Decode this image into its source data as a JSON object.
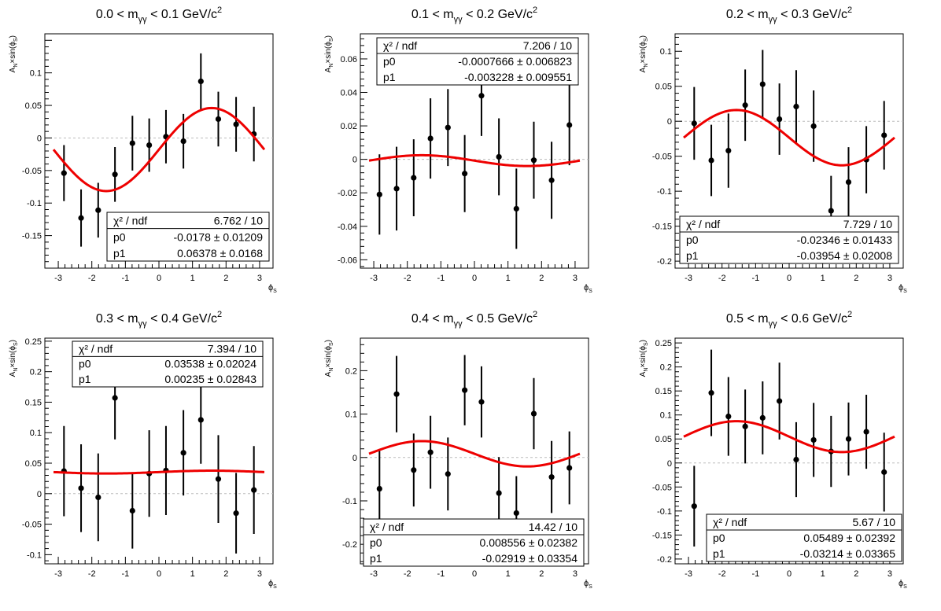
{
  "chart_data": [
    {
      "type": "scatter",
      "title": "0.0 < m_γγ < 0.1 GeV/c²",
      "title_parts": {
        "pre": "0.0 < m",
        "sub": "γγ",
        "mid": " < 0.1 GeV/c",
        "sup": "2"
      },
      "ylabel": {
        "a": "A",
        "a_sub": "N",
        "b": "×sin(ϕ",
        "b_sub": "S",
        "c": ")"
      },
      "xlabel": {
        "main": "ϕ",
        "sub": "S"
      },
      "xlim": [
        -3.4,
        3.4
      ],
      "ylim": [
        -0.2,
        0.16
      ],
      "xticks": [
        -3,
        -2,
        -1,
        0,
        1,
        2,
        3
      ],
      "yticks": [
        -0.15,
        -0.1,
        -0.05,
        0,
        0.05,
        0.1
      ],
      "ytick_labels": [
        "-0.15",
        "-0.1",
        "-0.05",
        "0",
        "0.05",
        "0.1"
      ],
      "x": [
        -2.83,
        -2.32,
        -1.81,
        -1.31,
        -0.79,
        -0.29,
        0.21,
        0.73,
        1.25,
        1.77,
        2.3,
        2.83
      ],
      "y": [
        -0.054,
        -0.123,
        -0.111,
        -0.056,
        -0.008,
        -0.011,
        0.002,
        -0.005,
        0.087,
        0.029,
        0.021,
        0.006
      ],
      "yerr": [
        0.043,
        0.044,
        0.042,
        0.042,
        0.042,
        0.041,
        0.041,
        0.042,
        0.043,
        0.042,
        0.042,
        0.042
      ],
      "fit": {
        "p0": -0.0178,
        "p1": 0.06378,
        "function": "p0 + p1*sin(phi_S)"
      },
      "stats": {
        "pos": "bottom-right",
        "chi2_label": "χ² / ndf",
        "chi2_value": "6.762 / 10",
        "p0_label": "p0",
        "p0_value": "-0.0178 ± 0.01209",
        "p1_label": "p1",
        "p1_value": "0.06378 ± 0.0168"
      }
    },
    {
      "type": "scatter",
      "title": "0.1 < m_γγ < 0.2 GeV/c²",
      "title_parts": {
        "pre": "0.1 < m",
        "sub": "γγ",
        "mid": " < 0.2 GeV/c",
        "sup": "2"
      },
      "ylabel": {
        "a": "A",
        "a_sub": "N",
        "b": "×sin(ϕ",
        "b_sub": "S",
        "c": ")"
      },
      "xlabel": {
        "main": "ϕ",
        "sub": "S"
      },
      "xlim": [
        -3.4,
        3.4
      ],
      "ylim": [
        -0.065,
        0.075
      ],
      "xticks": [
        -3,
        -2,
        -1,
        0,
        1,
        2,
        3
      ],
      "yticks": [
        -0.06,
        -0.04,
        -0.02,
        0,
        0.02,
        0.04,
        0.06
      ],
      "ytick_labels": [
        "-0.06",
        "-0.04",
        "-0.02",
        "0",
        "0.02",
        "0.04",
        "0.06"
      ],
      "x": [
        -2.83,
        -2.32,
        -1.81,
        -1.31,
        -0.79,
        -0.29,
        0.21,
        0.73,
        1.25,
        1.77,
        2.3,
        2.83
      ],
      "y": [
        -0.021,
        -0.0175,
        -0.011,
        0.0125,
        0.019,
        -0.0085,
        0.038,
        0.0015,
        -0.0295,
        -0.0005,
        -0.0125,
        0.0205
      ],
      "yerr": [
        0.024,
        0.025,
        0.023,
        0.024,
        0.023,
        0.023,
        0.024,
        0.023,
        0.024,
        0.023,
        0.023,
        0.024
      ],
      "fit": {
        "p0": -0.0007666,
        "p1": -0.003228,
        "function": "p0 + p1*sin(phi_S)"
      },
      "stats": {
        "pos": "top",
        "chi2_label": "χ² / ndf",
        "chi2_value": "7.206 / 10",
        "p0_label": "p0",
        "p0_value": "-0.0007666 ± 0.006823",
        "p1_label": "p1",
        "p1_value": "-0.003228 ± 0.009551"
      }
    },
    {
      "type": "scatter",
      "title": "0.2 < m_γγ < 0.3 GeV/c²",
      "title_parts": {
        "pre": "0.2 < m",
        "sub": "γγ",
        "mid": " < 0.3 GeV/c",
        "sup": "2"
      },
      "ylabel": {
        "a": "A",
        "a_sub": "N",
        "b": "×sin(ϕ",
        "b_sub": "S",
        "c": ")"
      },
      "xlabel": {
        "main": "ϕ",
        "sub": "S"
      },
      "xlim": [
        -3.4,
        3.4
      ],
      "ylim": [
        -0.21,
        0.125
      ],
      "xticks": [
        -3,
        -2,
        -1,
        0,
        1,
        2,
        3
      ],
      "yticks": [
        -0.2,
        -0.15,
        -0.1,
        -0.05,
        0,
        0.05,
        0.1
      ],
      "ytick_labels": [
        "-0.2",
        "-0.15",
        "-0.1",
        "-0.05",
        "0",
        "0.05",
        "0.1"
      ],
      "x": [
        -2.83,
        -2.32,
        -1.81,
        -1.31,
        -0.79,
        -0.29,
        0.21,
        0.73,
        1.25,
        1.77,
        2.3,
        2.83
      ],
      "y": [
        -0.003,
        -0.056,
        -0.042,
        0.023,
        0.053,
        0.003,
        0.021,
        -0.007,
        -0.128,
        -0.087,
        -0.055,
        -0.02
      ],
      "yerr": [
        0.052,
        0.051,
        0.053,
        0.051,
        0.049,
        0.051,
        0.052,
        0.051,
        0.05,
        0.05,
        0.048,
        0.049
      ],
      "fit": {
        "p0": -0.02346,
        "p1": -0.03954,
        "function": "p0 + p1*sin(phi_S)"
      },
      "stats": {
        "pos": "bottom-right",
        "chi2_label": "χ² / ndf",
        "chi2_value": "7.729 / 10",
        "p0_label": "p0",
        "p0_value": "-0.02346 ± 0.01433",
        "p1_label": "p1",
        "p1_value": "-0.03954 ± 0.02008"
      }
    },
    {
      "type": "scatter",
      "title": "0.3 < m_γγ < 0.4 GeV/c²",
      "title_parts": {
        "pre": "0.3 < m",
        "sub": "γγ",
        "mid": " < 0.4 GeV/c",
        "sup": "2"
      },
      "ylabel": {
        "a": "A",
        "a_sub": "N",
        "b": "×sin(ϕ",
        "b_sub": "S",
        "c": ")"
      },
      "xlabel": {
        "main": "ϕ",
        "sub": "S"
      },
      "xlim": [
        -3.4,
        3.4
      ],
      "ylim": [
        -0.115,
        0.255
      ],
      "xticks": [
        -3,
        -2,
        -1,
        0,
        1,
        2,
        3
      ],
      "yticks": [
        -0.1,
        -0.05,
        0,
        0.05,
        0.1,
        0.15,
        0.2,
        0.25
      ],
      "ytick_labels": [
        "-0.1",
        "-0.05",
        "0",
        "0.05",
        "0.1",
        "0.15",
        "0.2",
        "0.25"
      ],
      "x": [
        -2.83,
        -2.32,
        -1.81,
        -1.31,
        -0.79,
        -0.29,
        0.21,
        0.73,
        1.25,
        1.77,
        2.3,
        2.83
      ],
      "y": [
        0.037,
        0.009,
        -0.006,
        0.157,
        -0.028,
        0.033,
        0.038,
        0.067,
        0.121,
        0.024,
        -0.032,
        0.006
      ],
      "yerr": [
        0.074,
        0.072,
        0.072,
        0.068,
        0.062,
        0.071,
        0.073,
        0.07,
        0.072,
        0.072,
        0.066,
        0.072
      ],
      "fit": {
        "p0": 0.03538,
        "p1": 0.00235,
        "function": "p0 + p1*sin(phi_S)"
      },
      "stats": {
        "pos": "top",
        "chi2_label": "χ² / ndf",
        "chi2_value": "7.394 / 10",
        "p0_label": "p0",
        "p0_value": "0.03538 ± 0.02024",
        "p1_label": "p1",
        "p1_value": "0.00235 ± 0.02843"
      }
    },
    {
      "type": "scatter",
      "title": "0.4 < m_γγ < 0.5 GeV/c²",
      "title_parts": {
        "pre": "0.4 < m",
        "sub": "γγ",
        "mid": " < 0.5 GeV/c",
        "sup": "2"
      },
      "ylabel": {
        "a": "A",
        "a_sub": "N",
        "b": "×sin(ϕ",
        "b_sub": "S",
        "c": ")"
      },
      "xlabel": {
        "main": "ϕ",
        "sub": "S"
      },
      "xlim": [
        -3.4,
        3.4
      ],
      "ylim": [
        -0.245,
        0.275
      ],
      "xticks": [
        -3,
        -2,
        -1,
        0,
        1,
        2,
        3
      ],
      "yticks": [
        -0.2,
        -0.1,
        0,
        0.1,
        0.2
      ],
      "ytick_labels": [
        "-0.2",
        "-0.1",
        "0",
        "0.1",
        "0.2"
      ],
      "x": [
        -2.83,
        -2.32,
        -1.81,
        -1.31,
        -0.79,
        -0.29,
        0.21,
        0.73,
        1.25,
        1.77,
        2.3,
        2.83
      ],
      "y": [
        -0.072,
        0.146,
        -0.029,
        0.012,
        -0.038,
        0.155,
        0.128,
        -0.082,
        -0.128,
        0.101,
        -0.045,
        -0.024
      ],
      "yerr": [
        0.087,
        0.088,
        0.084,
        0.084,
        0.084,
        0.081,
        0.082,
        0.083,
        0.085,
        0.082,
        0.083,
        0.084
      ],
      "fit": {
        "p0": 0.008556,
        "p1": -0.02919,
        "function": "p0 + p1*sin(phi_S)"
      },
      "stats": {
        "pos": "bottom",
        "chi2_label": "χ² / ndf",
        "chi2_value": "14.42 / 10",
        "p0_label": "p0",
        "p0_value": "0.008556 ± 0.02382",
        "p1_label": "p1",
        "p1_value": "-0.02919 ± 0.03354"
      }
    },
    {
      "type": "scatter",
      "title": "0.5 < m_γγ < 0.6 GeV/c²",
      "title_parts": {
        "pre": "0.5 < m",
        "sub": "γγ",
        "mid": " < 0.6 GeV/c",
        "sup": "2"
      },
      "ylabel": {
        "a": "A",
        "a_sub": "N",
        "b": "×sin(ϕ",
        "b_sub": "S",
        "c": ")"
      },
      "xlabel": {
        "main": "ϕ",
        "sub": "S"
      },
      "xlim": [
        -3.4,
        3.4
      ],
      "ylim": [
        -0.21,
        0.26
      ],
      "xticks": [
        -3,
        -2,
        -1,
        0,
        1,
        2,
        3
      ],
      "yticks": [
        -0.2,
        -0.15,
        -0.1,
        -0.05,
        0,
        0.05,
        0.1,
        0.15,
        0.2,
        0.25
      ],
      "ytick_labels": [
        "-0.2",
        "-0.15",
        "-0.1",
        "-0.05",
        "0",
        "0.05",
        "0.1",
        "0.15",
        "0.2",
        "0.25"
      ],
      "x": [
        -2.83,
        -2.32,
        -1.81,
        -1.31,
        -0.79,
        -0.29,
        0.21,
        0.73,
        1.25,
        1.77,
        2.3,
        2.83
      ],
      "y": [
        -0.09,
        0.146,
        0.097,
        0.076,
        0.094,
        0.129,
        0.007,
        0.048,
        0.024,
        0.05,
        0.065,
        -0.019
      ],
      "yerr": [
        0.084,
        0.09,
        0.082,
        0.077,
        0.076,
        0.08,
        0.078,
        0.077,
        0.074,
        0.076,
        0.077,
        0.082
      ],
      "fit": {
        "p0": 0.05489,
        "p1": -0.03214,
        "function": "p0 + p1*sin(phi_S)"
      },
      "stats": {
        "pos": "bottom-right",
        "chi2_label": "χ² / ndf",
        "chi2_value": "5.67 / 10",
        "p0_label": "p0",
        "p0_value": "0.05489 ± 0.02392",
        "p1_label": "p1",
        "p1_value": "-0.03214 ± 0.03365"
      }
    }
  ],
  "colors": {
    "fit_line": "#ee0000",
    "points": "#000000",
    "zero_line": "#bbbbbb",
    "frame": "#000000"
  }
}
